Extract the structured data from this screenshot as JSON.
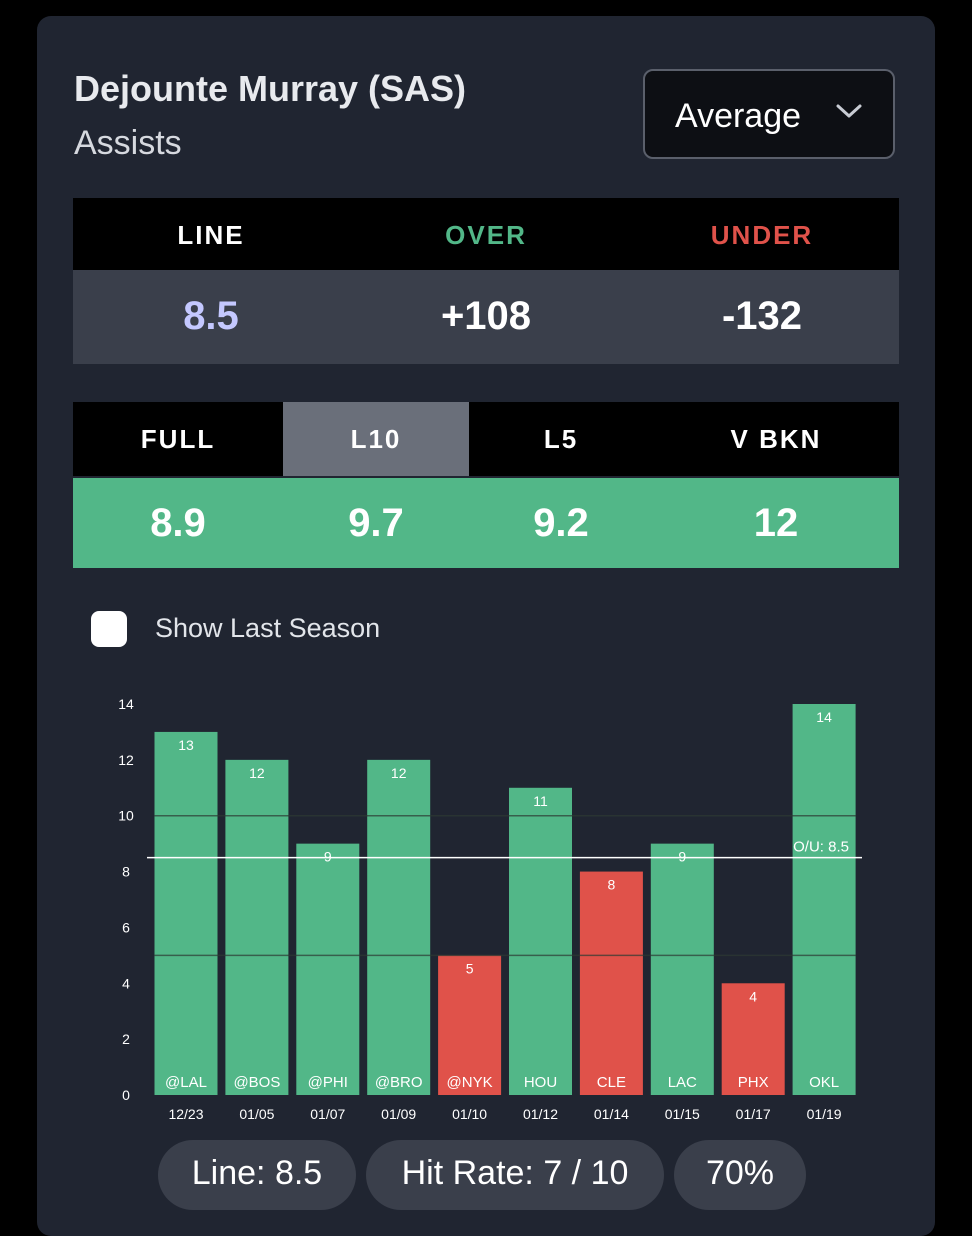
{
  "header": {
    "player": "Dejounte Murray (SAS)",
    "stat": "Assists",
    "dropdown_selected": "Average"
  },
  "line_table": {
    "headers": [
      "LINE",
      "OVER",
      "UNDER"
    ],
    "values": [
      "8.5",
      "+108",
      "-132"
    ],
    "colors": {
      "line_value": "#c4c8ff",
      "over": "#52b788",
      "under": "#e0524a"
    }
  },
  "average_table": {
    "tabs": [
      "FULL",
      "L10",
      "L5",
      "V BKN"
    ],
    "active_tab": "L10",
    "values": [
      "8.9",
      "9.7",
      "9.2",
      "12"
    ]
  },
  "options": {
    "show_last_season_label": "Show Last Season",
    "show_last_season_checked": false
  },
  "chart_data": {
    "type": "bar",
    "categories": [
      "12/23",
      "01/05",
      "01/07",
      "01/09",
      "01/10",
      "01/12",
      "01/14",
      "01/15",
      "01/17",
      "01/19"
    ],
    "opponents": [
      "@LAL",
      "@BOS",
      "@PHI",
      "@BRO",
      "@NYK",
      "HOU",
      "CLE",
      "LAC",
      "PHX",
      "OKL"
    ],
    "values": [
      13,
      12,
      9,
      12,
      5,
      11,
      8,
      9,
      4,
      14
    ],
    "ylim": [
      0,
      14
    ],
    "yticks": [
      0,
      2,
      4,
      6,
      8,
      10,
      12,
      14
    ],
    "line": {
      "value": 8.5,
      "label": "O/U: 8.5"
    },
    "colors": {
      "over": "#52b788",
      "under": "#e0524a"
    }
  },
  "footer": {
    "line_pill": "Line: 8.5",
    "hit_rate_pill": "Hit Rate: 7 / 10",
    "percent_pill": "70%"
  }
}
